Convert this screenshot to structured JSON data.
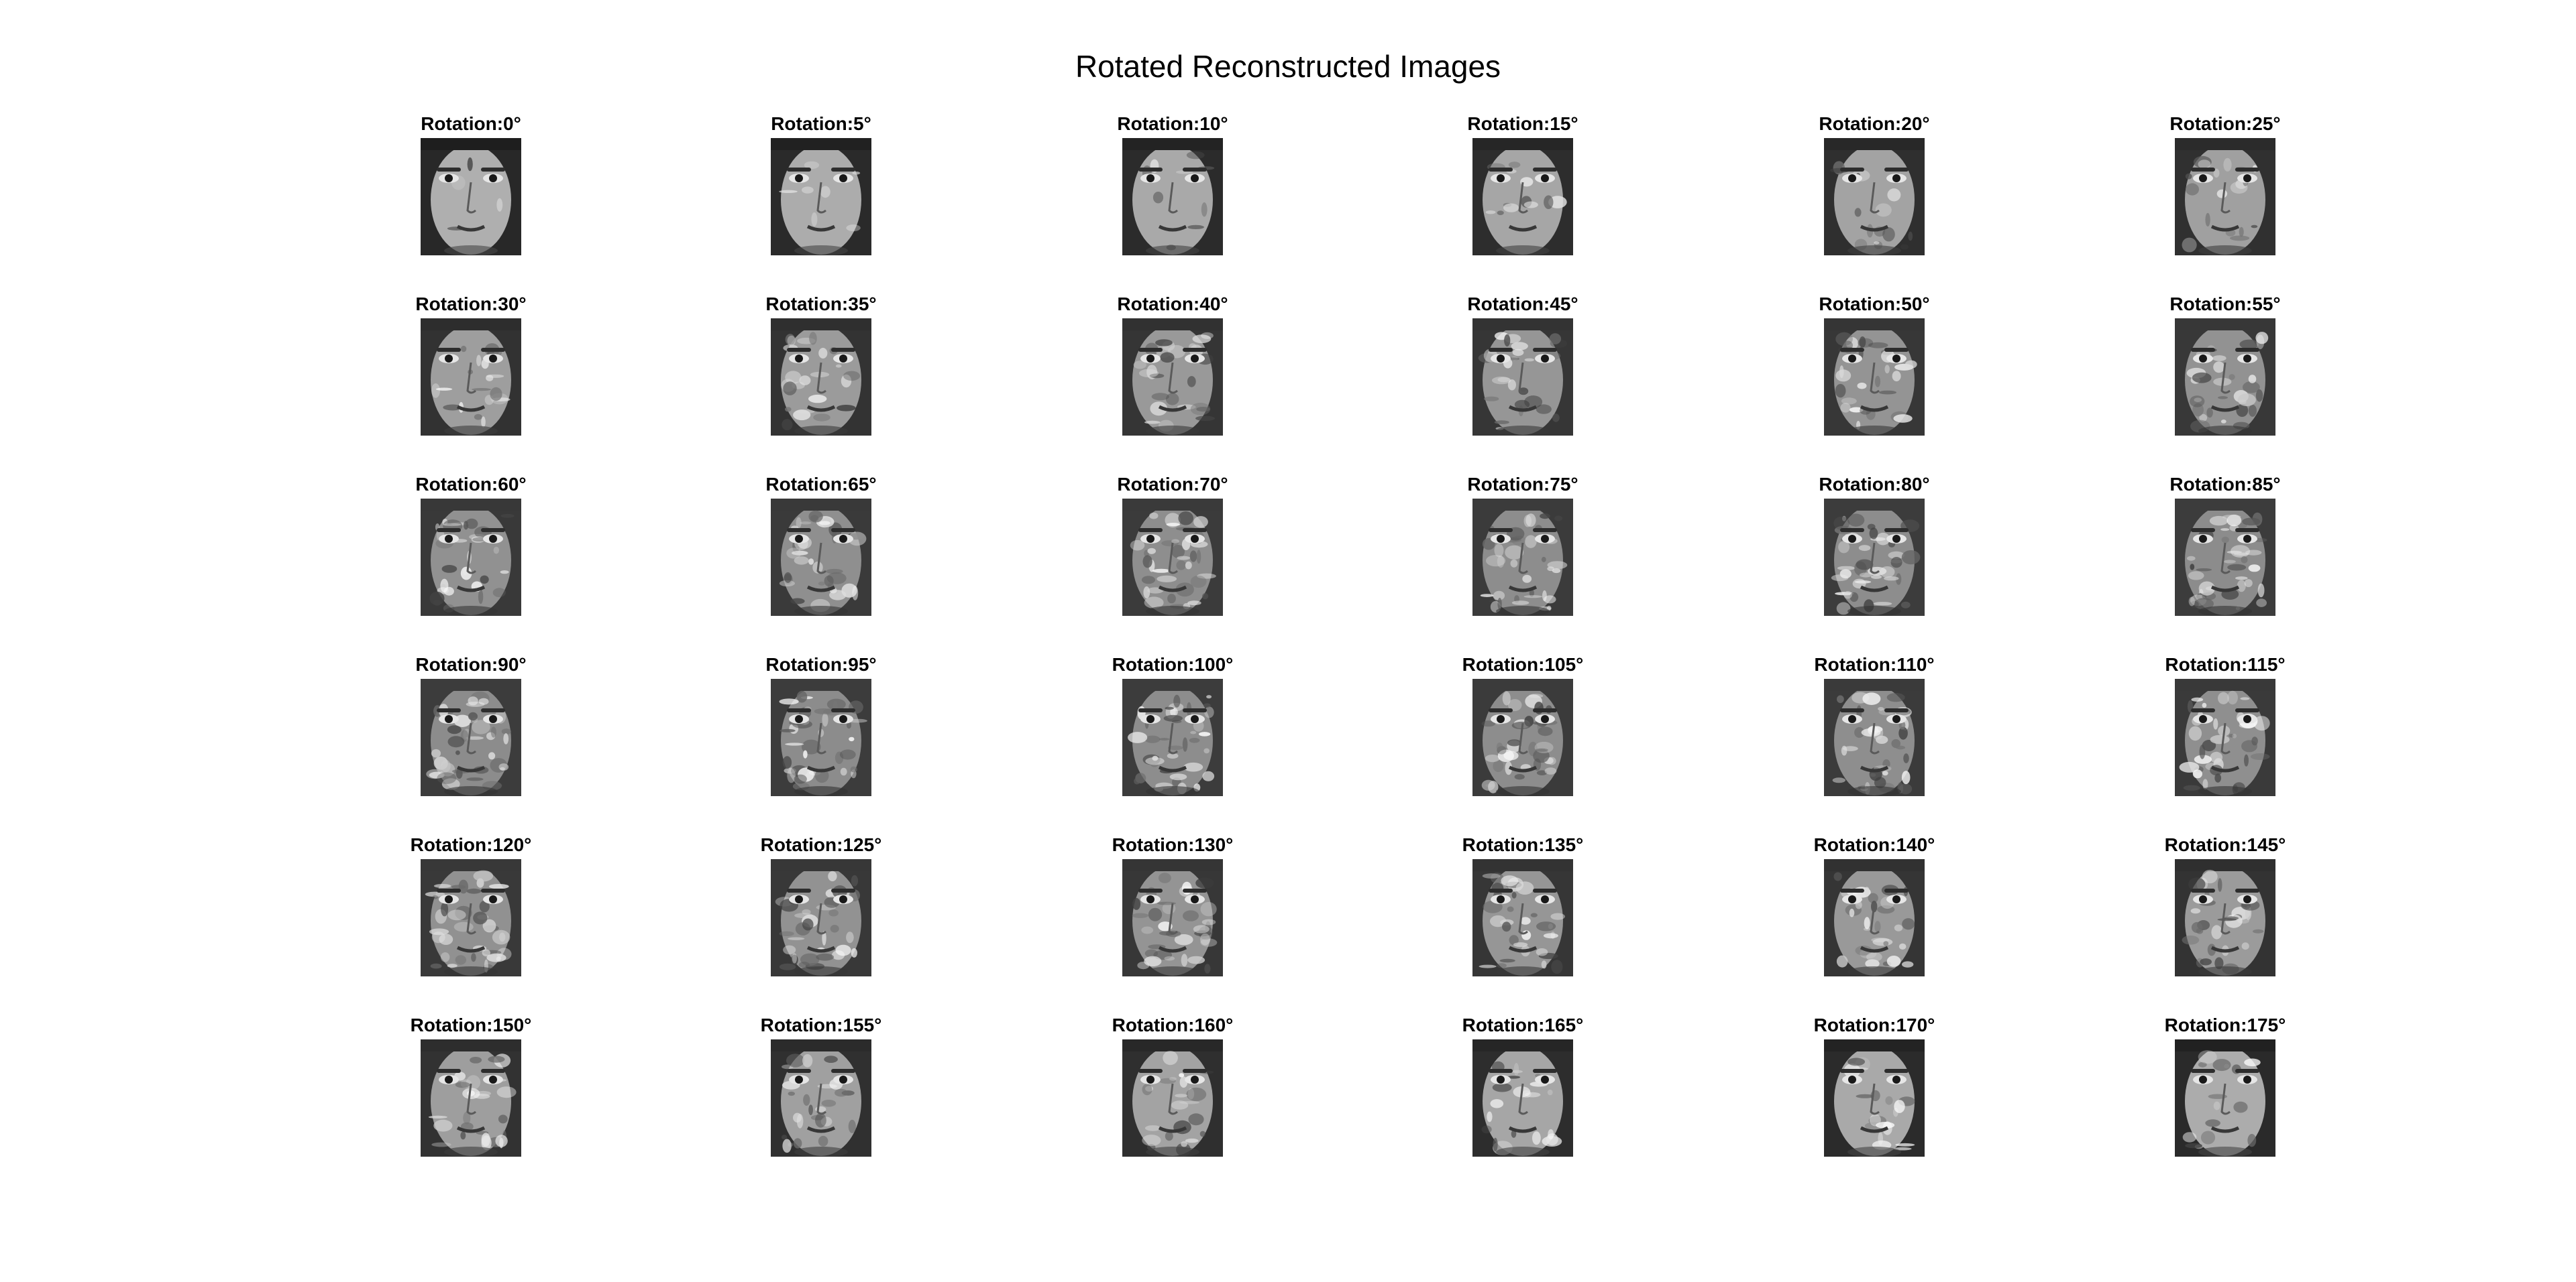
{
  "title": "Rotated Reconstructed Images",
  "image_kind": "face-reconstruction",
  "panels": [
    {
      "label": "Rotation:0°",
      "angle": 0
    },
    {
      "label": "Rotation:5°",
      "angle": 5
    },
    {
      "label": "Rotation:10°",
      "angle": 10
    },
    {
      "label": "Rotation:15°",
      "angle": 15
    },
    {
      "label": "Rotation:20°",
      "angle": 20
    },
    {
      "label": "Rotation:25°",
      "angle": 25
    },
    {
      "label": "Rotation:30°",
      "angle": 30
    },
    {
      "label": "Rotation:35°",
      "angle": 35
    },
    {
      "label": "Rotation:40°",
      "angle": 40
    },
    {
      "label": "Rotation:45°",
      "angle": 45
    },
    {
      "label": "Rotation:50°",
      "angle": 50
    },
    {
      "label": "Rotation:55°",
      "angle": 55
    },
    {
      "label": "Rotation:60°",
      "angle": 60
    },
    {
      "label": "Rotation:65°",
      "angle": 65
    },
    {
      "label": "Rotation:70°",
      "angle": 70
    },
    {
      "label": "Rotation:75°",
      "angle": 75
    },
    {
      "label": "Rotation:80°",
      "angle": 80
    },
    {
      "label": "Rotation:85°",
      "angle": 85
    },
    {
      "label": "Rotation:90°",
      "angle": 90
    },
    {
      "label": "Rotation:95°",
      "angle": 95
    },
    {
      "label": "Rotation:100°",
      "angle": 100
    },
    {
      "label": "Rotation:105°",
      "angle": 105
    },
    {
      "label": "Rotation:110°",
      "angle": 110
    },
    {
      "label": "Rotation:115°",
      "angle": 115
    },
    {
      "label": "Rotation:120°",
      "angle": 120
    },
    {
      "label": "Rotation:125°",
      "angle": 125
    },
    {
      "label": "Rotation:130°",
      "angle": 130
    },
    {
      "label": "Rotation:135°",
      "angle": 135
    },
    {
      "label": "Rotation:140°",
      "angle": 140
    },
    {
      "label": "Rotation:145°",
      "angle": 145
    },
    {
      "label": "Rotation:150°",
      "angle": 150
    },
    {
      "label": "Rotation:155°",
      "angle": 155
    },
    {
      "label": "Rotation:160°",
      "angle": 160
    },
    {
      "label": "Rotation:165°",
      "angle": 165
    },
    {
      "label": "Rotation:170°",
      "angle": 170
    },
    {
      "label": "Rotation:175°",
      "angle": 175
    }
  ]
}
